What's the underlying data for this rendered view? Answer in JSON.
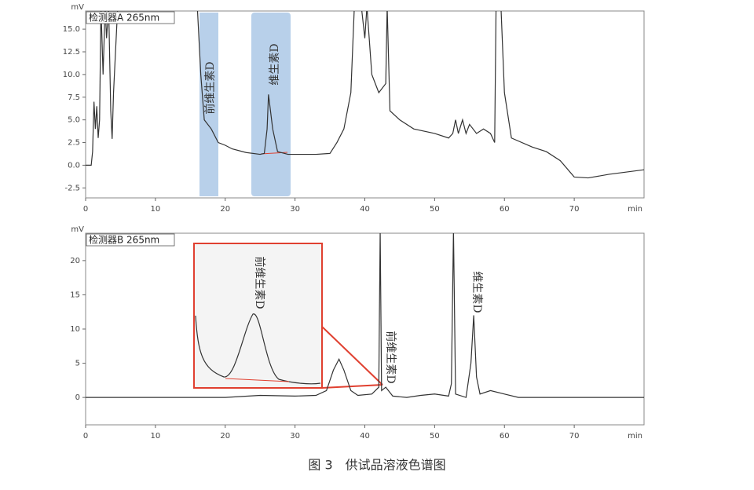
{
  "chart_data": [
    {
      "type": "line",
      "detector": "检测器A 265nm",
      "y_label": "mV",
      "x_label": "min",
      "x": [
        0,
        0.8,
        1.0,
        1.2,
        1.4,
        1.6,
        1.8,
        2.0,
        2.2,
        2.5,
        2.8,
        3.0,
        3.3,
        3.6,
        3.8,
        4.0,
        4.6,
        5,
        16,
        16.5,
        17,
        18,
        19,
        20,
        21,
        23,
        25,
        25.6,
        26,
        26.2,
        26.8,
        27.5,
        29,
        33,
        35,
        36,
        37,
        38,
        38.5,
        39.5,
        40,
        40.3,
        41,
        42,
        43,
        43.2,
        43.6,
        45,
        47,
        50,
        52,
        52.6,
        53,
        53.4,
        54,
        54.5,
        55,
        56,
        57,
        58,
        58.6,
        58.8,
        59.5,
        60,
        61,
        64,
        66,
        68,
        70,
        72,
        75,
        80
      ],
      "series": [
        {
          "color": "#333333",
          "values": [
            0,
            0,
            1.5,
            7,
            4,
            6.5,
            3,
            5,
            17.5,
            10,
            17.5,
            14,
            17.5,
            6,
            2.9,
            8,
            17.5,
            17.5,
            17.5,
            10,
            5,
            4,
            2.5,
            2.2,
            1.8,
            1.4,
            1.2,
            1.3,
            4,
            7.8,
            4,
            1.5,
            1.2,
            1.2,
            1.3,
            2.5,
            4,
            8,
            17.5,
            17.5,
            14,
            17.5,
            10,
            8,
            9,
            17.5,
            6,
            5,
            4,
            3.5,
            3,
            3.5,
            5,
            3.5,
            5,
            3.5,
            4.5,
            3.5,
            4,
            3.5,
            2.5,
            17.5,
            17.5,
            8,
            3,
            2,
            1.5,
            0.5,
            -1.3,
            -1.4,
            -1,
            -0.5
          ]
        }
      ],
      "xlim": [
        0,
        80
      ],
      "xticks": [
        0,
        10,
        20,
        30,
        40,
        50,
        60,
        70
      ],
      "ylim": [
        -3.6,
        17
      ],
      "yticks": [
        {
          "value": 15,
          "label": "15.0"
        },
        12.5,
        {
          "value": 10,
          "label": "10.0"
        },
        7.5,
        {
          "value": 5,
          "label": "5.0"
        },
        2.5,
        {
          "value": 0,
          "label": "0.0"
        },
        -2.5
      ],
      "annotations": [
        "前维生素D",
        "维生素D"
      ]
    },
    {
      "type": "line",
      "detector": "检测器B 265nm",
      "y_label": "mV",
      "x_label": "min",
      "x": [
        0,
        20,
        25,
        30,
        33,
        34.5,
        35.5,
        36.3,
        37,
        38,
        39,
        41,
        42,
        42.2,
        42.4,
        43,
        44,
        46,
        48,
        50,
        52,
        52.4,
        52.7,
        53,
        54.5,
        55.2,
        55.6,
        56,
        56.5,
        58,
        60,
        62,
        80
      ],
      "series": [
        {
          "color": "#333333",
          "values": [
            0,
            0,
            0.3,
            0.2,
            0.3,
            1,
            4,
            5.6,
            4,
            1,
            0.3,
            0.5,
            1.5,
            24.5,
            1,
            1.5,
            0.2,
            0,
            0.3,
            0.5,
            0.2,
            2,
            24.5,
            0.5,
            0,
            5,
            12,
            3,
            0.5,
            1,
            0.5,
            0,
            0
          ]
        }
      ],
      "xlim": [
        0,
        80
      ],
      "xticks": [
        0,
        10,
        20,
        30,
        40,
        50,
        60,
        70
      ],
      "ylim": [
        -4,
        24
      ],
      "yticks": [
        0,
        5,
        10,
        15,
        20
      ],
      "annotations": [
        "前维生素D",
        "前维生素D",
        "维生素D"
      ]
    }
  ],
  "caption": "图 3　供试品溶液色谱图"
}
